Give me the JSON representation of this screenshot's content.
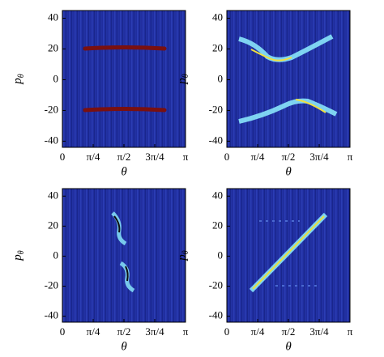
{
  "chart_data": [
    {
      "type": "heatmap",
      "xlabel": "θ",
      "ylabel": {
        "main": "p",
        "sub": "θ"
      },
      "xlim": [
        0,
        3.14159
      ],
      "ylim": [
        -44,
        45
      ],
      "xticks": [
        0,
        {
          "value": 0.7854,
          "label": "π/4"
        },
        {
          "value": 1.5708,
          "label": "π/2"
        },
        {
          "value": 2.3562,
          "label": "3π/4"
        },
        {
          "value": 3.14159,
          "label": "π"
        }
      ],
      "yticks": [
        -40,
        -20,
        0,
        20,
        40
      ]
    },
    {
      "type": "heatmap",
      "xlabel": "θ",
      "ylabel": {
        "main": "p",
        "sub": "θ"
      },
      "xlim": [
        0,
        3.14159
      ],
      "ylim": [
        -44,
        45
      ],
      "xticks": [
        0,
        {
          "value": 0.7854,
          "label": "π/4"
        },
        {
          "value": 1.5708,
          "label": "π/2"
        },
        {
          "value": 2.3562,
          "label": "3π/4"
        },
        {
          "value": 3.14159,
          "label": "π"
        }
      ],
      "yticks": [
        -40,
        -20,
        0,
        20,
        40
      ]
    },
    {
      "type": "heatmap",
      "xlabel": "θ",
      "ylabel": {
        "main": "p",
        "sub": "θ"
      },
      "xlim": [
        0,
        3.14159
      ],
      "ylim": [
        -44,
        45
      ],
      "xticks": [
        0,
        {
          "value": 0.7854,
          "label": "π/4"
        },
        {
          "value": 1.5708,
          "label": "π/2"
        },
        {
          "value": 2.3562,
          "label": "3π/4"
        },
        {
          "value": 3.14159,
          "label": "π"
        }
      ],
      "yticks": [
        -40,
        -20,
        0,
        20,
        40
      ]
    },
    {
      "type": "heatmap",
      "xlabel": "θ",
      "ylabel": {
        "main": "p",
        "sub": "θ"
      },
      "xlim": [
        0,
        3.14159
      ],
      "ylim": [
        -44,
        45
      ],
      "xticks": [
        0,
        {
          "value": 0.7854,
          "label": "π/4"
        },
        {
          "value": 1.5708,
          "label": "π/2"
        },
        {
          "value": 2.3562,
          "label": "3π/4"
        },
        {
          "value": 3.14159,
          "label": "π"
        }
      ],
      "yticks": [
        -40,
        -20,
        0,
        20,
        40
      ]
    }
  ]
}
